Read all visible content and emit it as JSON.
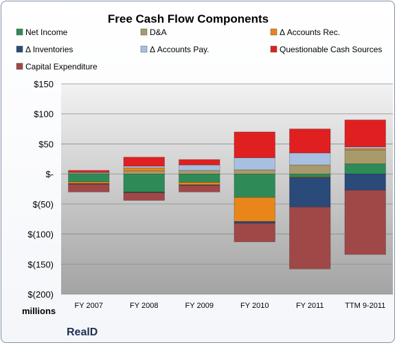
{
  "chart_data": {
    "type": "bar",
    "stacked": true,
    "title": "Free Cash Flow Components",
    "xlabel": "",
    "ylabel": "",
    "unit_label": "millions",
    "company": "RealD",
    "categories": [
      "FY 2007",
      "FY 2008",
      "FY 2009",
      "FY 2010",
      "FY 2011",
      "TTM 9-2011"
    ],
    "ylim": [
      -200,
      150
    ],
    "yticks": [
      150,
      100,
      50,
      0,
      -50,
      -100,
      -150,
      -200
    ],
    "ytick_labels": [
      "$150",
      "$100",
      "$50",
      "$-",
      "$(50)",
      "$(100)",
      "$(150)",
      "$(200)"
    ],
    "grid": true,
    "legend_position": "top",
    "series": [
      {
        "name": "Net Income",
        "color": "#2e8b57",
        "values": [
          -13,
          -30,
          -14,
          -39,
          -5,
          17
        ]
      },
      {
        "name": "D&A",
        "color": "#a89a6b",
        "values": [
          2,
          5,
          6,
          7,
          15,
          23
        ]
      },
      {
        "name": "Δ Accounts Rec.",
        "color": "#e8861a",
        "values": [
          -3,
          5,
          -4,
          -40,
          -1,
          2
        ]
      },
      {
        "name": "Δ Inventories",
        "color": "#2a4a7a",
        "values": [
          -1,
          -1,
          -1,
          -3,
          -49,
          -27
        ]
      },
      {
        "name": "Δ Accounts Pay.",
        "color": "#a8c0e0",
        "values": [
          1,
          3,
          9,
          20,
          20,
          3
        ]
      },
      {
        "name": "Questionable Cash Sources",
        "color": "#e02020",
        "values": [
          3,
          15,
          9,
          43,
          40,
          45
        ]
      },
      {
        "name": "Capital Expenditure",
        "color": "#a04848",
        "values": [
          -13,
          -13,
          -11,
          -31,
          -103,
          -107
        ]
      }
    ]
  }
}
